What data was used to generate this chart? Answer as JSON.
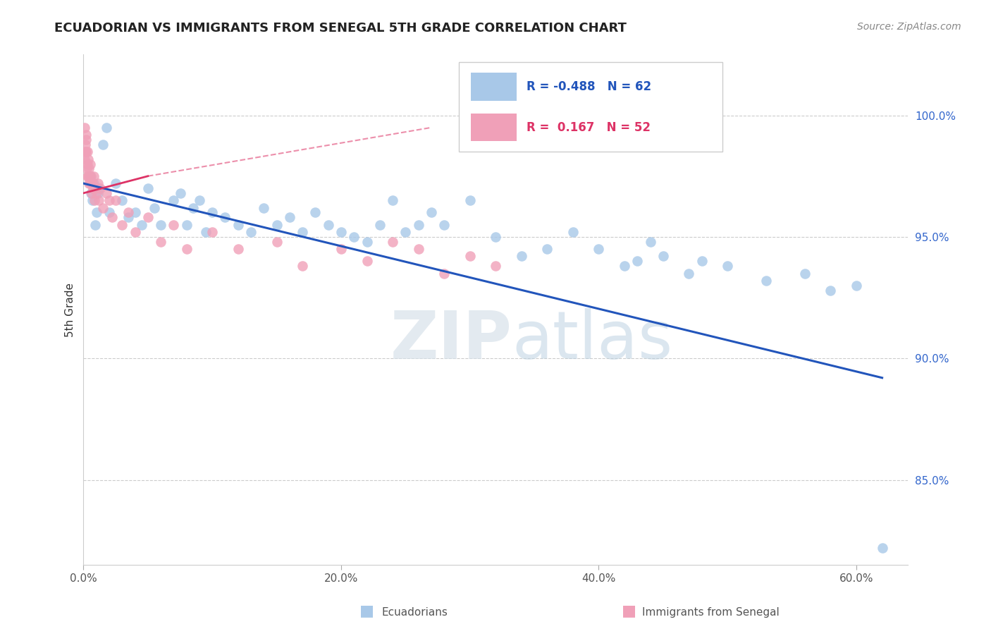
{
  "title": "ECUADORIAN VS IMMIGRANTS FROM SENEGAL 5TH GRADE CORRELATION CHART",
  "source": "Source: ZipAtlas.com",
  "ylabel": "5th Grade",
  "x_tick_labels": [
    "0.0%",
    "20.0%",
    "40.0%",
    "60.0%"
  ],
  "x_tick_positions": [
    0.0,
    20.0,
    40.0,
    60.0
  ],
  "y_tick_labels": [
    "85.0%",
    "90.0%",
    "95.0%",
    "100.0%"
  ],
  "y_tick_positions": [
    85.0,
    90.0,
    95.0,
    100.0
  ],
  "xlim": [
    0.0,
    64.0
  ],
  "ylim": [
    81.5,
    102.5
  ],
  "blue_color": "#a8c8e8",
  "pink_color": "#f0a0b8",
  "blue_line_color": "#2255bb",
  "pink_line_color": "#dd3366",
  "legend_blue_label": "Ecuadorians",
  "legend_pink_label": "Immigrants from Senegal",
  "R_blue": "-0.488",
  "N_blue": "62",
  "R_pink": "0.167",
  "N_pink": "52",
  "watermark_zip": "ZIP",
  "watermark_atlas": "atlas",
  "blue_scatter_x": [
    0.5,
    0.6,
    0.7,
    0.8,
    0.9,
    1.0,
    1.1,
    1.2,
    1.5,
    1.8,
    2.0,
    2.5,
    3.0,
    3.5,
    4.0,
    4.5,
    5.0,
    5.5,
    6.0,
    7.0,
    7.5,
    8.0,
    8.5,
    9.0,
    9.5,
    10.0,
    11.0,
    12.0,
    13.0,
    14.0,
    15.0,
    16.0,
    17.0,
    18.0,
    19.0,
    20.0,
    21.0,
    22.0,
    23.0,
    24.0,
    25.0,
    26.0,
    27.0,
    28.0,
    30.0,
    32.0,
    34.0,
    36.0,
    38.0,
    40.0,
    42.0,
    43.0,
    44.0,
    45.0,
    47.0,
    48.0,
    50.0,
    53.0,
    56.0,
    58.0,
    60.0,
    62.0
  ],
  "blue_scatter_y": [
    97.5,
    96.8,
    96.5,
    97.2,
    95.5,
    96.0,
    96.8,
    97.0,
    98.8,
    99.5,
    96.0,
    97.2,
    96.5,
    95.8,
    96.0,
    95.5,
    97.0,
    96.2,
    95.5,
    96.5,
    96.8,
    95.5,
    96.2,
    96.5,
    95.2,
    96.0,
    95.8,
    95.5,
    95.2,
    96.2,
    95.5,
    95.8,
    95.2,
    96.0,
    95.5,
    95.2,
    95.0,
    94.8,
    95.5,
    96.5,
    95.2,
    95.5,
    96.0,
    95.5,
    96.5,
    95.0,
    94.2,
    94.5,
    95.2,
    94.5,
    93.8,
    94.0,
    94.8,
    94.2,
    93.5,
    94.0,
    93.8,
    93.2,
    93.5,
    92.8,
    93.0,
    82.2
  ],
  "pink_scatter_x": [
    0.08,
    0.1,
    0.12,
    0.15,
    0.18,
    0.2,
    0.22,
    0.25,
    0.28,
    0.3,
    0.32,
    0.35,
    0.38,
    0.4,
    0.42,
    0.45,
    0.5,
    0.55,
    0.6,
    0.65,
    0.7,
    0.75,
    0.8,
    0.85,
    0.9,
    1.0,
    1.1,
    1.2,
    1.3,
    1.5,
    1.8,
    2.0,
    2.2,
    2.5,
    3.0,
    3.5,
    4.0,
    5.0,
    6.0,
    7.0,
    8.0,
    10.0,
    12.0,
    15.0,
    17.0,
    20.0,
    22.0,
    24.0,
    26.0,
    28.0,
    30.0,
    32.0
  ],
  "pink_scatter_y": [
    98.2,
    99.5,
    98.8,
    98.5,
    99.0,
    98.5,
    99.2,
    97.8,
    98.5,
    97.5,
    98.0,
    97.5,
    98.2,
    97.2,
    97.8,
    97.5,
    98.0,
    97.2,
    97.5,
    96.8,
    97.2,
    97.0,
    97.5,
    96.5,
    97.0,
    96.8,
    97.2,
    96.5,
    97.0,
    96.2,
    96.8,
    96.5,
    95.8,
    96.5,
    95.5,
    96.0,
    95.2,
    95.8,
    94.8,
    95.5,
    94.5,
    95.2,
    94.5,
    94.8,
    93.8,
    94.5,
    94.0,
    94.8,
    94.5,
    93.5,
    94.2,
    93.8
  ],
  "blue_line_x0": 0.0,
  "blue_line_x1": 62.0,
  "blue_line_y0": 97.2,
  "blue_line_y1": 89.2,
  "pink_line_x0": 0.0,
  "pink_line_x1": 5.0,
  "pink_line_y0": 96.8,
  "pink_line_y1": 97.5,
  "pink_dash_x0": 5.0,
  "pink_dash_x1": 27.0,
  "pink_dash_y0": 97.5,
  "pink_dash_y1": 99.5
}
